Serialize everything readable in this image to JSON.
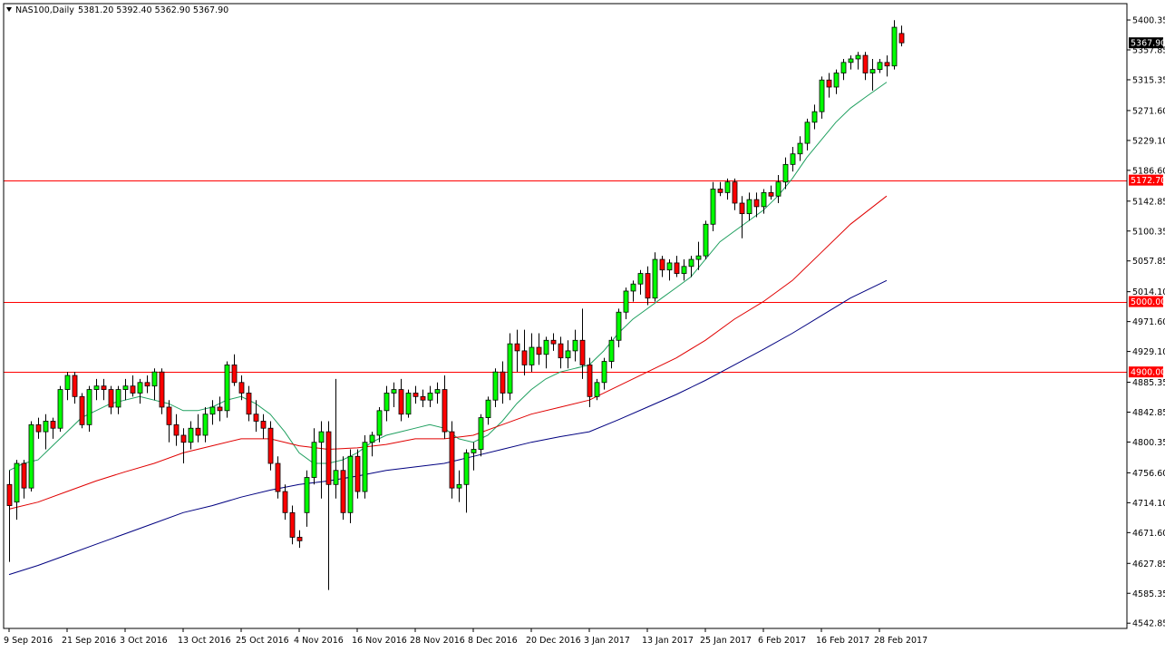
{
  "header": {
    "symbol": "NAS100,Daily",
    "ohlc": "5381.20 5392.40 5362.90 5367.90",
    "icon": "collapse-triangle-icon"
  },
  "colors": {
    "background": "#ffffff",
    "frame": "#000000",
    "bull_body": "#00ff00",
    "bear_body": "#ff0000",
    "wick": "#000000",
    "level_line": "#ff0000",
    "ma_fast": "#20a060",
    "ma_mid": "#e00000",
    "ma_slow": "#000080",
    "price_box": "#000000",
    "level_box": "#ff0000"
  },
  "chart_data": {
    "type": "candlestick",
    "title": "",
    "xlabel": "",
    "ylabel": "",
    "ylim": [
      4535.4,
      5423.6
    ],
    "grid": false,
    "y_ticks": [
      5400.35,
      5357.85,
      5315.35,
      5271.6,
      5229.1,
      5186.6,
      5142.85,
      5100.35,
      5057.85,
      5014.1,
      4971.6,
      4929.1,
      4885.35,
      4842.85,
      4800.35,
      4756.6,
      4714.1,
      4671.6,
      4627.85,
      4585.35,
      4542.85
    ],
    "x_tick_labels": [
      {
        "label": "9 Sep 2016",
        "index": 0
      },
      {
        "label": "21 Sep 2016",
        "index": 8
      },
      {
        "label": "3 Oct 2016",
        "index": 16
      },
      {
        "label": "13 Oct 2016",
        "index": 24
      },
      {
        "label": "25 Oct 2016",
        "index": 32
      },
      {
        "label": "4 Nov 2016",
        "index": 40
      },
      {
        "label": "16 Nov 2016",
        "index": 48
      },
      {
        "label": "28 Nov 2016",
        "index": 56
      },
      {
        "label": "8 Dec 2016",
        "index": 64
      },
      {
        "label": "20 Dec 2016",
        "index": 72
      },
      {
        "label": "3 Jan 2017",
        "index": 80
      },
      {
        "label": "13 Jan 2017",
        "index": 88
      },
      {
        "label": "25 Jan 2017",
        "index": 96
      },
      {
        "label": "6 Feb 2017",
        "index": 104
      },
      {
        "label": "16 Feb 2017",
        "index": 112
      },
      {
        "label": "28 Feb 2017",
        "index": 120
      }
    ],
    "current_price": {
      "value": 5367.9,
      "label": "5367.90"
    },
    "levels": [
      {
        "value": 5172.7,
        "label": "5172.70"
      },
      {
        "value": 5000.0,
        "label": "5000.00"
      },
      {
        "value": 4900.0,
        "label": "4900.00"
      }
    ],
    "candles": [
      [
        4740,
        4760,
        4630,
        4710
      ],
      [
        4715,
        4775,
        4690,
        4770
      ],
      [
        4770,
        4775,
        4720,
        4735
      ],
      [
        4735,
        4830,
        4730,
        4825
      ],
      [
        4825,
        4835,
        4805,
        4815
      ],
      [
        4815,
        4840,
        4790,
        4830
      ],
      [
        4830,
        4835,
        4805,
        4820
      ],
      [
        4820,
        4880,
        4815,
        4875
      ],
      [
        4875,
        4900,
        4860,
        4895
      ],
      [
        4895,
        4900,
        4855,
        4865
      ],
      [
        4865,
        4870,
        4820,
        4825
      ],
      [
        4825,
        4880,
        4815,
        4875
      ],
      [
        4875,
        4890,
        4860,
        4880
      ],
      [
        4880,
        4890,
        4860,
        4875
      ],
      [
        4875,
        4880,
        4840,
        4850
      ],
      [
        4850,
        4880,
        4840,
        4875
      ],
      [
        4875,
        4890,
        4860,
        4880
      ],
      [
        4880,
        4895,
        4865,
        4870
      ],
      [
        4870,
        4890,
        4855,
        4885
      ],
      [
        4885,
        4895,
        4870,
        4880
      ],
      [
        4880,
        4905,
        4860,
        4900
      ],
      [
        4900,
        4905,
        4840,
        4850
      ],
      [
        4850,
        4860,
        4800,
        4825
      ],
      [
        4825,
        4840,
        4795,
        4810
      ],
      [
        4810,
        4820,
        4770,
        4800
      ],
      [
        4800,
        4830,
        4790,
        4820
      ],
      [
        4820,
        4840,
        4800,
        4810
      ],
      [
        4810,
        4850,
        4800,
        4840
      ],
      [
        4840,
        4860,
        4825,
        4850
      ],
      [
        4850,
        4865,
        4830,
        4845
      ],
      [
        4845,
        4915,
        4835,
        4910
      ],
      [
        4910,
        4925,
        4880,
        4885
      ],
      [
        4885,
        4895,
        4860,
        4870
      ],
      [
        4870,
        4880,
        4830,
        4840
      ],
      [
        4840,
        4860,
        4815,
        4830
      ],
      [
        4830,
        4840,
        4805,
        4820
      ],
      [
        4820,
        4830,
        4760,
        4770
      ],
      [
        4770,
        4780,
        4720,
        4730
      ],
      [
        4730,
        4740,
        4690,
        4700
      ],
      [
        4700,
        4710,
        4655,
        4665
      ],
      [
        4665,
        4675,
        4650,
        4660
      ],
      [
        4700,
        4760,
        4680,
        4750
      ],
      [
        4750,
        4820,
        4740,
        4800
      ],
      [
        4800,
        4830,
        4720,
        4815
      ],
      [
        4815,
        4830,
        4590,
        4740
      ],
      [
        4740,
        4890,
        4720,
        4760
      ],
      [
        4760,
        4780,
        4690,
        4700
      ],
      [
        4700,
        4790,
        4685,
        4780
      ],
      [
        4780,
        4790,
        4720,
        4730
      ],
      [
        4730,
        4810,
        4720,
        4800
      ],
      [
        4800,
        4815,
        4780,
        4810
      ],
      [
        4810,
        4850,
        4800,
        4845
      ],
      [
        4845,
        4880,
        4830,
        4870
      ],
      [
        4870,
        4885,
        4850,
        4875
      ],
      [
        4875,
        4890,
        4830,
        4840
      ],
      [
        4840,
        4875,
        4835,
        4870
      ],
      [
        4870,
        4880,
        4855,
        4865
      ],
      [
        4865,
        4875,
        4850,
        4860
      ],
      [
        4860,
        4880,
        4850,
        4870
      ],
      [
        4870,
        4885,
        4855,
        4875
      ],
      [
        4875,
        4895,
        4805,
        4815
      ],
      [
        4815,
        4830,
        4720,
        4735
      ],
      [
        4735,
        4760,
        4715,
        4740
      ],
      [
        4740,
        4790,
        4700,
        4785
      ],
      [
        4785,
        4800,
        4760,
        4790
      ],
      [
        4790,
        4840,
        4780,
        4835
      ],
      [
        4835,
        4865,
        4825,
        4860
      ],
      [
        4860,
        4905,
        4850,
        4900
      ],
      [
        4900,
        4915,
        4855,
        4870
      ],
      [
        4870,
        4955,
        4860,
        4940
      ],
      [
        4940,
        4960,
        4900,
        4930
      ],
      [
        4930,
        4960,
        4895,
        4910
      ],
      [
        4910,
        4955,
        4900,
        4935
      ],
      [
        4935,
        4955,
        4910,
        4925
      ],
      [
        4925,
        4950,
        4905,
        4945
      ],
      [
        4945,
        4955,
        4930,
        4940
      ],
      [
        4940,
        4950,
        4905,
        4920
      ],
      [
        4920,
        4945,
        4905,
        4930
      ],
      [
        4930,
        4960,
        4915,
        4945
      ],
      [
        4945,
        4990,
        4890,
        4910
      ],
      [
        4910,
        4920,
        4850,
        4865
      ],
      [
        4865,
        4890,
        4860,
        4885
      ],
      [
        4885,
        4920,
        4875,
        4915
      ],
      [
        4915,
        4950,
        4905,
        4945
      ],
      [
        4945,
        4990,
        4935,
        4985
      ],
      [
        4985,
        5020,
        4975,
        5015
      ],
      [
        5015,
        5030,
        5000,
        5025
      ],
      [
        5025,
        5045,
        5010,
        5040
      ],
      [
        5040,
        5050,
        4995,
        5005
      ],
      [
        5005,
        5070,
        5000,
        5060
      ],
      [
        5060,
        5065,
        5035,
        5045
      ],
      [
        5045,
        5060,
        5030,
        5055
      ],
      [
        5055,
        5065,
        5035,
        5040
      ],
      [
        5040,
        5060,
        5030,
        5050
      ],
      [
        5050,
        5065,
        5035,
        5060
      ],
      [
        5060,
        5085,
        5045,
        5065
      ],
      [
        5065,
        5115,
        5060,
        5110
      ],
      [
        5110,
        5170,
        5100,
        5160
      ],
      [
        5160,
        5170,
        5150,
        5155
      ],
      [
        5155,
        5175,
        5145,
        5170
      ],
      [
        5170,
        5175,
        5130,
        5140
      ],
      [
        5140,
        5150,
        5090,
        5125
      ],
      [
        5125,
        5155,
        5115,
        5145
      ],
      [
        5145,
        5155,
        5120,
        5135
      ],
      [
        5135,
        5160,
        5125,
        5155
      ],
      [
        5155,
        5165,
        5145,
        5150
      ],
      [
        5150,
        5180,
        5140,
        5170
      ],
      [
        5170,
        5205,
        5160,
        5195
      ],
      [
        5195,
        5220,
        5185,
        5210
      ],
      [
        5210,
        5235,
        5200,
        5225
      ],
      [
        5225,
        5260,
        5215,
        5255
      ],
      [
        5255,
        5280,
        5245,
        5270
      ],
      [
        5270,
        5320,
        5260,
        5315
      ],
      [
        5315,
        5325,
        5290,
        5305
      ],
      [
        5305,
        5330,
        5295,
        5325
      ],
      [
        5325,
        5345,
        5315,
        5340
      ],
      [
        5340,
        5350,
        5330,
        5345
      ],
      [
        5345,
        5355,
        5330,
        5350
      ],
      [
        5350,
        5355,
        5315,
        5325
      ],
      [
        5325,
        5345,
        5300,
        5330
      ],
      [
        5330,
        5345,
        5325,
        5340
      ],
      [
        5340,
        5350,
        5320,
        5335
      ],
      [
        5335,
        5400,
        5330,
        5390
      ],
      [
        5381.2,
        5392.4,
        5362.9,
        5367.9
      ]
    ],
    "moving_averages": [
      {
        "color": "#20a060",
        "values": [
          [
            0,
            4760
          ],
          [
            2,
            4770
          ],
          [
            4,
            4775
          ],
          [
            6,
            4795
          ],
          [
            8,
            4815
          ],
          [
            10,
            4835
          ],
          [
            12,
            4845
          ],
          [
            14,
            4855
          ],
          [
            16,
            4860
          ],
          [
            18,
            4865
          ],
          [
            20,
            4860
          ],
          [
            22,
            4855
          ],
          [
            24,
            4845
          ],
          [
            26,
            4845
          ],
          [
            28,
            4850
          ],
          [
            30,
            4860
          ],
          [
            32,
            4865
          ],
          [
            34,
            4855
          ],
          [
            36,
            4840
          ],
          [
            38,
            4815
          ],
          [
            40,
            4785
          ],
          [
            42,
            4770
          ],
          [
            44,
            4770
          ],
          [
            46,
            4775
          ],
          [
            48,
            4785
          ],
          [
            50,
            4800
          ],
          [
            52,
            4810
          ],
          [
            54,
            4815
          ],
          [
            56,
            4820
          ],
          [
            58,
            4825
          ],
          [
            60,
            4820
          ],
          [
            62,
            4805
          ],
          [
            64,
            4800
          ],
          [
            66,
            4810
          ],
          [
            68,
            4830
          ],
          [
            70,
            4855
          ],
          [
            72,
            4875
          ],
          [
            74,
            4890
          ],
          [
            76,
            4900
          ],
          [
            78,
            4905
          ],
          [
            80,
            4910
          ],
          [
            82,
            4930
          ],
          [
            84,
            4955
          ],
          [
            86,
            4975
          ],
          [
            88,
            4990
          ],
          [
            90,
            5005
          ],
          [
            92,
            5020
          ],
          [
            94,
            5035
          ],
          [
            96,
            5060
          ],
          [
            98,
            5085
          ],
          [
            100,
            5100
          ],
          [
            102,
            5115
          ],
          [
            104,
            5130
          ],
          [
            106,
            5150
          ],
          [
            108,
            5175
          ],
          [
            110,
            5205
          ],
          [
            112,
            5230
          ],
          [
            114,
            5255
          ],
          [
            116,
            5275
          ],
          [
            118,
            5290
          ],
          [
            121,
            5312
          ]
        ]
      },
      {
        "color": "#e00000",
        "values": [
          [
            0,
            4705
          ],
          [
            4,
            4715
          ],
          [
            8,
            4730
          ],
          [
            12,
            4745
          ],
          [
            16,
            4758
          ],
          [
            20,
            4770
          ],
          [
            24,
            4785
          ],
          [
            28,
            4795
          ],
          [
            32,
            4805
          ],
          [
            36,
            4805
          ],
          [
            40,
            4795
          ],
          [
            44,
            4790
          ],
          [
            48,
            4792
          ],
          [
            52,
            4797
          ],
          [
            56,
            4805
          ],
          [
            60,
            4805
          ],
          [
            64,
            4810
          ],
          [
            68,
            4825
          ],
          [
            72,
            4840
          ],
          [
            76,
            4850
          ],
          [
            80,
            4860
          ],
          [
            84,
            4880
          ],
          [
            88,
            4900
          ],
          [
            92,
            4920
          ],
          [
            96,
            4945
          ],
          [
            100,
            4975
          ],
          [
            104,
            5000
          ],
          [
            108,
            5030
          ],
          [
            112,
            5070
          ],
          [
            116,
            5110
          ],
          [
            121,
            5150
          ]
        ]
      },
      {
        "color": "#000080",
        "values": [
          [
            0,
            4612
          ],
          [
            4,
            4625
          ],
          [
            8,
            4640
          ],
          [
            12,
            4655
          ],
          [
            16,
            4670
          ],
          [
            20,
            4685
          ],
          [
            24,
            4700
          ],
          [
            28,
            4710
          ],
          [
            32,
            4722
          ],
          [
            36,
            4732
          ],
          [
            40,
            4740
          ],
          [
            44,
            4745
          ],
          [
            48,
            4752
          ],
          [
            52,
            4760
          ],
          [
            56,
            4765
          ],
          [
            60,
            4770
          ],
          [
            64,
            4780
          ],
          [
            68,
            4790
          ],
          [
            72,
            4800
          ],
          [
            76,
            4808
          ],
          [
            80,
            4815
          ],
          [
            84,
            4832
          ],
          [
            88,
            4850
          ],
          [
            92,
            4868
          ],
          [
            96,
            4888
          ],
          [
            100,
            4910
          ],
          [
            104,
            4932
          ],
          [
            108,
            4955
          ],
          [
            112,
            4980
          ],
          [
            116,
            5005
          ],
          [
            121,
            5030
          ]
        ]
      }
    ]
  }
}
